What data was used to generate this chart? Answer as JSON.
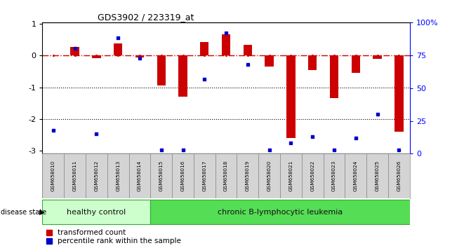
{
  "title": "GDS3902 / 223319_at",
  "samples": [
    "GSM658010",
    "GSM658011",
    "GSM658012",
    "GSM658013",
    "GSM658014",
    "GSM658015",
    "GSM658016",
    "GSM658017",
    "GSM658018",
    "GSM658019",
    "GSM658020",
    "GSM658021",
    "GSM658022",
    "GSM658023",
    "GSM658024",
    "GSM658025",
    "GSM658026"
  ],
  "red_values": [
    0.0,
    0.27,
    -0.08,
    0.38,
    -0.05,
    -0.95,
    -1.3,
    0.42,
    0.68,
    0.35,
    -0.35,
    -2.6,
    -0.45,
    -1.35,
    -0.55,
    -0.1,
    -2.4
  ],
  "blue_values_pct": [
    18,
    80,
    15,
    88,
    73,
    3,
    3,
    57,
    92,
    68,
    3,
    8,
    13,
    3,
    12,
    30,
    3
  ],
  "ylim_left": [
    -3.1,
    1.05
  ],
  "ylim_right": [
    0,
    100
  ],
  "right_yticks": [
    0,
    25,
    50,
    75,
    100
  ],
  "right_yticklabels": [
    "0",
    "25",
    "50",
    "75",
    "100%"
  ],
  "left_yticks": [
    -3,
    -2,
    -1,
    0,
    1
  ],
  "left_yticklabels": [
    "-3",
    "-2",
    "-1",
    "0",
    "1"
  ],
  "dotted_lines": [
    -1,
    -2
  ],
  "bar_color_red": "#cc0000",
  "bar_color_blue": "#0000cc",
  "hline_color": "#cc0000",
  "group1_label": "healthy control",
  "group2_label": "chronic B-lymphocytic leukemia",
  "group1_count": 5,
  "group2_count": 12,
  "disease_label": "disease state",
  "legend_red": "transformed count",
  "legend_blue": "percentile rank within the sample",
  "bg_color": "#ffffff",
  "group1_color": "#ccffcc",
  "group2_color": "#55dd55",
  "bar_width": 0.4,
  "xlim": [
    -0.5,
    16.5
  ]
}
